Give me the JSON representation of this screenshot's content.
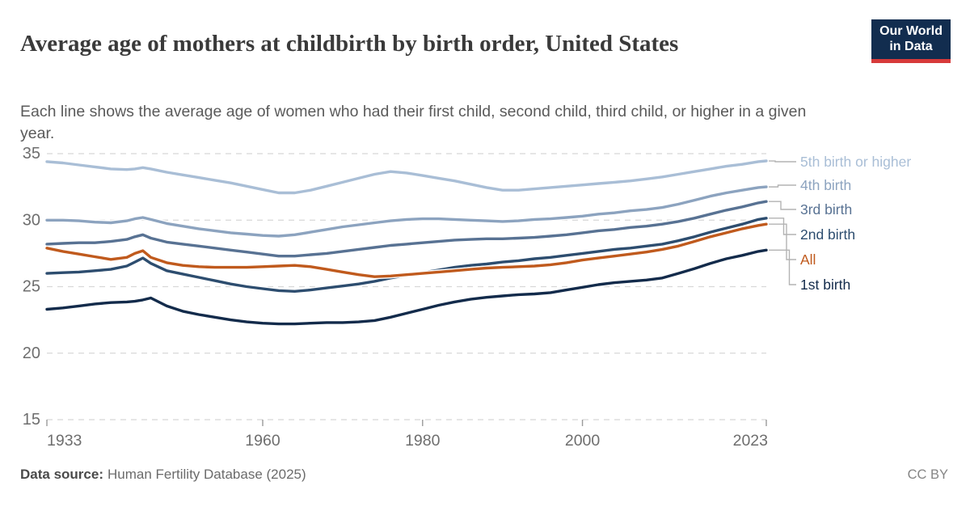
{
  "header": {
    "title": "Average age of mothers at childbirth by birth order, United States",
    "subtitle": "Each line shows the average age of women who had their first child, second child, third child, or higher in a given year.",
    "logo": {
      "line1": "Our World",
      "line2": "in Data"
    }
  },
  "footer": {
    "data_source_label": "Data source:",
    "data_source_value": "Human Fertility Database (2025)",
    "license": "CC BY"
  },
  "colors": {
    "logo_navy": "#122d4f",
    "logo_red": "#d73a3a",
    "gridline": "#d8d8d8",
    "tick": "#9a9a9a",
    "tick_label": "#6e6e6e",
    "connector": "#b3b3b3"
  },
  "chart_data": {
    "type": "line",
    "title": "Average age of mothers at childbirth by birth order, United States",
    "xlabel": "",
    "ylabel": "",
    "grid": "horizontal-dashed",
    "legend_position": "right",
    "x_range": [
      1933,
      2023
    ],
    "y_range": [
      15,
      35
    ],
    "x_ticks": [
      1933,
      1960,
      1980,
      2000,
      2023
    ],
    "y_ticks": [
      15,
      20,
      25,
      30,
      35
    ],
    "x": [
      1933,
      1935,
      1937,
      1939,
      1941,
      1943,
      1944,
      1945,
      1946,
      1948,
      1950,
      1952,
      1954,
      1956,
      1958,
      1960,
      1962,
      1964,
      1966,
      1968,
      1970,
      1972,
      1974,
      1976,
      1978,
      1980,
      1982,
      1984,
      1986,
      1988,
      1990,
      1992,
      1994,
      1996,
      1998,
      2000,
      2002,
      2004,
      2006,
      2008,
      2010,
      2012,
      2014,
      2016,
      2018,
      2020,
      2022,
      2023
    ],
    "series": [
      {
        "name": "5th birth or higher",
        "color": "#a9bed6",
        "values": [
          34.4,
          34.3,
          34.15,
          34.0,
          33.85,
          33.8,
          33.85,
          33.95,
          33.85,
          33.6,
          33.4,
          33.2,
          33.0,
          32.8,
          32.55,
          32.3,
          32.05,
          32.05,
          32.25,
          32.55,
          32.85,
          33.15,
          33.45,
          33.65,
          33.55,
          33.35,
          33.15,
          32.95,
          32.7,
          32.45,
          32.25,
          32.25,
          32.35,
          32.45,
          32.55,
          32.65,
          32.75,
          32.85,
          32.95,
          33.1,
          33.25,
          33.45,
          33.65,
          33.85,
          34.05,
          34.2,
          34.4,
          34.45
        ]
      },
      {
        "name": "4th birth",
        "color": "#8ca3bf",
        "values": [
          30.0,
          30.0,
          29.95,
          29.85,
          29.8,
          29.95,
          30.1,
          30.2,
          30.05,
          29.75,
          29.55,
          29.35,
          29.2,
          29.05,
          28.95,
          28.85,
          28.8,
          28.9,
          29.1,
          29.3,
          29.5,
          29.65,
          29.8,
          29.95,
          30.05,
          30.1,
          30.1,
          30.05,
          30.0,
          29.95,
          29.9,
          29.95,
          30.05,
          30.1,
          30.2,
          30.3,
          30.45,
          30.55,
          30.7,
          30.8,
          30.95,
          31.2,
          31.5,
          31.8,
          32.05,
          32.25,
          32.45,
          32.5
        ]
      },
      {
        "name": "3rd birth",
        "color": "#587293",
        "values": [
          28.2,
          28.25,
          28.3,
          28.3,
          28.4,
          28.55,
          28.75,
          28.9,
          28.65,
          28.35,
          28.2,
          28.05,
          27.9,
          27.75,
          27.6,
          27.45,
          27.3,
          27.3,
          27.4,
          27.5,
          27.65,
          27.8,
          27.95,
          28.1,
          28.2,
          28.3,
          28.4,
          28.5,
          28.55,
          28.6,
          28.6,
          28.65,
          28.7,
          28.8,
          28.9,
          29.05,
          29.2,
          29.3,
          29.45,
          29.55,
          29.7,
          29.9,
          30.15,
          30.45,
          30.75,
          31.0,
          31.3,
          31.4
        ]
      },
      {
        "name": "2nd birth",
        "color": "#2d4d6f",
        "values": [
          26.0,
          26.05,
          26.1,
          26.2,
          26.3,
          26.55,
          26.85,
          27.15,
          26.75,
          26.2,
          25.95,
          25.7,
          25.45,
          25.2,
          25.0,
          24.85,
          24.7,
          24.65,
          24.75,
          24.9,
          25.05,
          25.2,
          25.4,
          25.65,
          25.85,
          26.05,
          26.25,
          26.45,
          26.6,
          26.7,
          26.85,
          26.95,
          27.1,
          27.2,
          27.35,
          27.5,
          27.65,
          27.8,
          27.9,
          28.05,
          28.2,
          28.45,
          28.75,
          29.1,
          29.4,
          29.7,
          30.05,
          30.15
        ]
      },
      {
        "name": "All",
        "color": "#c05a1d",
        "values": [
          27.9,
          27.65,
          27.45,
          27.25,
          27.05,
          27.2,
          27.5,
          27.7,
          27.2,
          26.8,
          26.6,
          26.5,
          26.45,
          26.45,
          26.45,
          26.5,
          26.55,
          26.6,
          26.5,
          26.3,
          26.1,
          25.9,
          25.75,
          25.8,
          25.9,
          26.0,
          26.1,
          26.2,
          26.3,
          26.4,
          26.45,
          26.5,
          26.55,
          26.65,
          26.8,
          27.0,
          27.15,
          27.3,
          27.45,
          27.6,
          27.8,
          28.05,
          28.4,
          28.75,
          29.05,
          29.35,
          29.6,
          29.7
        ]
      },
      {
        "name": "1st birth",
        "color": "#132b4b",
        "values": [
          23.3,
          23.4,
          23.55,
          23.7,
          23.8,
          23.85,
          23.9,
          24.0,
          24.15,
          23.55,
          23.15,
          22.9,
          22.7,
          22.5,
          22.35,
          22.25,
          22.2,
          22.2,
          22.25,
          22.3,
          22.3,
          22.35,
          22.45,
          22.7,
          23.0,
          23.3,
          23.6,
          23.85,
          24.05,
          24.2,
          24.3,
          24.4,
          24.45,
          24.55,
          24.75,
          24.95,
          25.15,
          25.3,
          25.4,
          25.5,
          25.65,
          26.0,
          26.35,
          26.75,
          27.1,
          27.35,
          27.65,
          27.75
        ]
      }
    ]
  }
}
